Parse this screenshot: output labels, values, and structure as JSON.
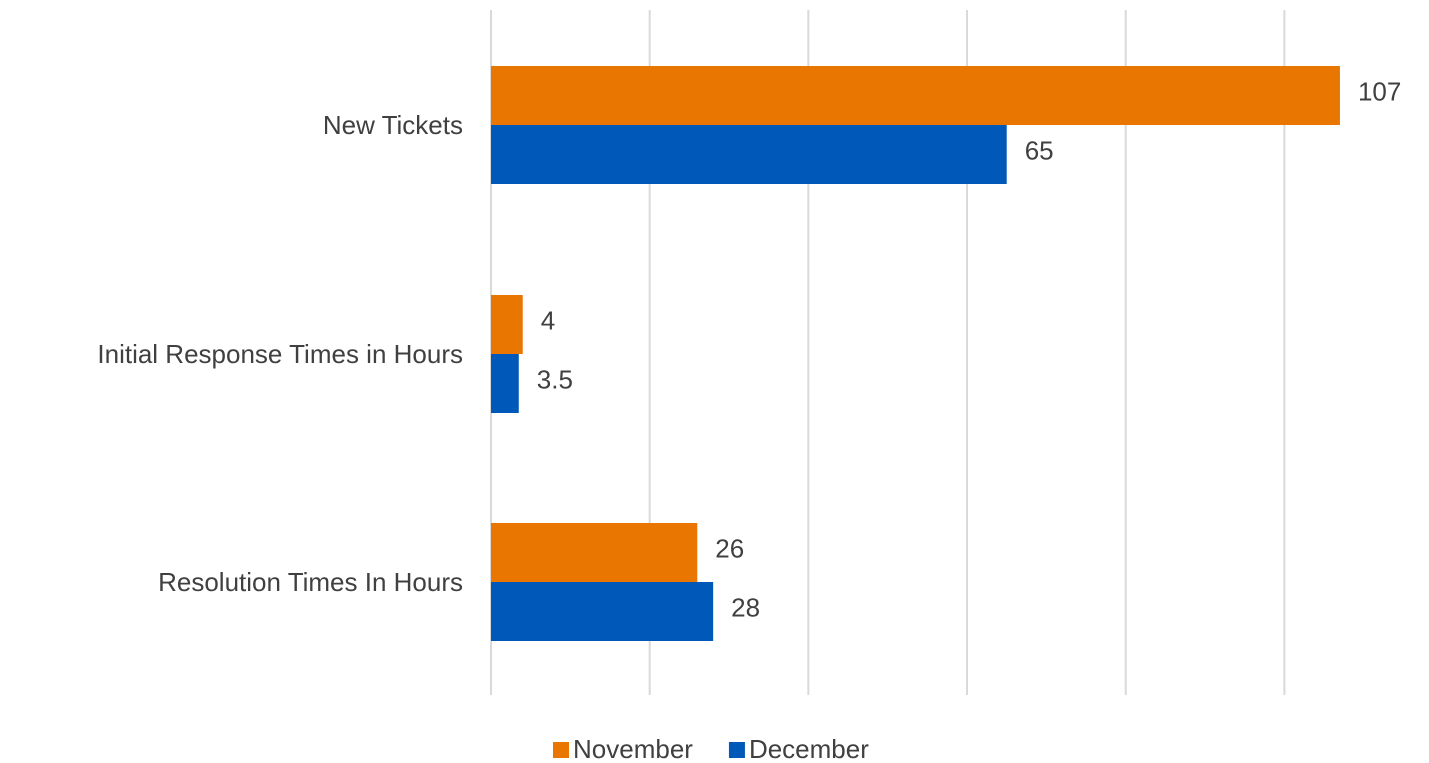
{
  "chart_data": {
    "type": "bar",
    "orientation": "horizontal",
    "categories": [
      "New Tickets",
      "Initial Response Times in Hours",
      "Resolution Times In Hours"
    ],
    "series": [
      {
        "name": "November",
        "color": "#e97600",
        "values": [
          107,
          4,
          26
        ]
      },
      {
        "name": "December",
        "color": "#0058b8",
        "values": [
          65,
          3.5,
          28
        ]
      }
    ],
    "xlim": [
      0,
      110
    ],
    "xticks": [
      0,
      20,
      40,
      60,
      80,
      100
    ],
    "grid": true,
    "legend": "bottom"
  }
}
